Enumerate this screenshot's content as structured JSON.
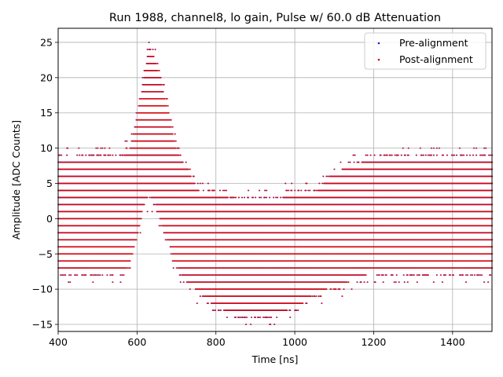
{
  "chart_data": {
    "type": "scatter",
    "title": "Run 1988, channel8, lo gain, Pulse w/ 60.0 dB Attenuation",
    "xlabel": "Time [ns]",
    "ylabel": "Amplitude [ADC Counts]",
    "xlim": [
      400,
      1500
    ],
    "ylim": [
      -16,
      27
    ],
    "xticks": [
      400,
      600,
      800,
      1000,
      1200,
      1400
    ],
    "yticks": [
      -15,
      -10,
      -5,
      0,
      5,
      10,
      15,
      20,
      25
    ],
    "xtick_labels": [
      "400",
      "600",
      "800",
      "1000",
      "1200",
      "1400"
    ],
    "ytick_labels": [
      "−15",
      "−10",
      "−5",
      "0",
      "5",
      "10",
      "15",
      "20",
      "25"
    ],
    "grid": true,
    "legend_position": "top-right",
    "series": [
      {
        "name": "Pre-alignment",
        "color": "#1f1fdf",
        "marker": "dot"
      },
      {
        "name": "Post-alignment",
        "color": "#e00000",
        "marker": "dot"
      }
    ],
    "envelope": {
      "x": [
        400,
        470,
        560,
        580,
        600,
        615,
        630,
        645,
        660,
        680,
        700,
        720,
        760,
        800,
        850,
        900,
        950,
        1000,
        1050,
        1100,
        1150,
        1200,
        1300,
        1400,
        1500
      ],
      "y_max": [
        9,
        9,
        9,
        10,
        15,
        20,
        25,
        23,
        20,
        15,
        10,
        8,
        4,
        4,
        3,
        3,
        3,
        4,
        4,
        7,
        8,
        9,
        9,
        9,
        9
      ],
      "y_min": [
        -8,
        -8,
        -8,
        -7,
        -3,
        1,
        3,
        2,
        -1,
        -4,
        -7,
        -9,
        -11,
        -13,
        -14,
        -14,
        -14,
        -13,
        -11,
        -10,
        -9,
        -8,
        -8,
        -8,
        -8
      ]
    }
  }
}
